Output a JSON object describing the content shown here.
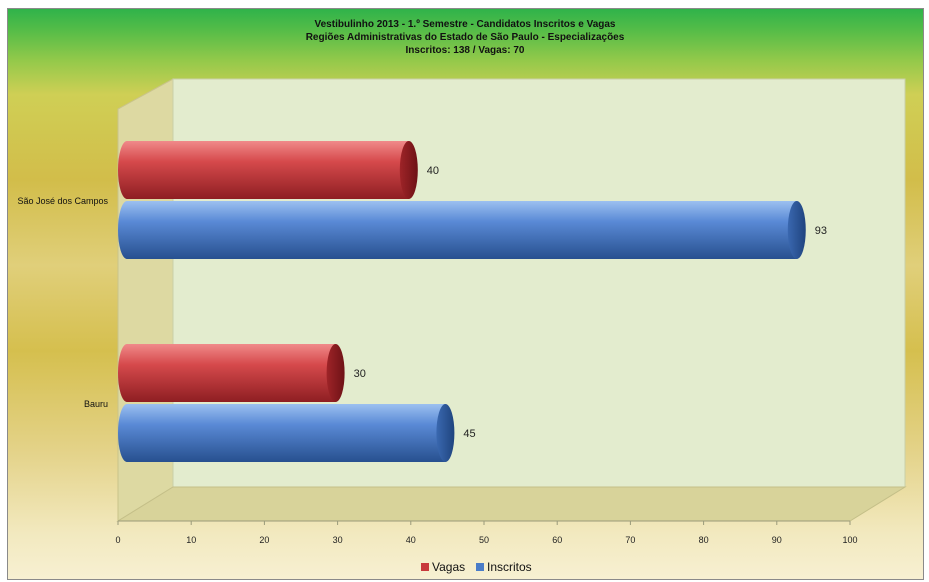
{
  "chart_data": {
    "type": "bar",
    "orientation": "horizontal",
    "title_lines": [
      "Vestibulinho 2013 - 1.º Semestre - Candidatos Inscritos e Vagas",
      "Regiões Administrativas do Estado de São Paulo - Especializações",
      "Inscritos:  138 / Vagas: 70"
    ],
    "categories": [
      "São José dos Campos",
      "Bauru"
    ],
    "series": [
      {
        "name": "Vagas",
        "values": [
          40,
          30
        ],
        "color": "#c8393c"
      },
      {
        "name": "Inscritos",
        "values": [
          93,
          45
        ],
        "color": "#4a7cc8"
      }
    ],
    "xlim": [
      0,
      100
    ],
    "x_ticks": [
      0,
      10,
      20,
      30,
      40,
      50,
      60,
      70,
      80,
      90,
      100
    ],
    "grid": false,
    "legend_position": "bottom",
    "colors": {
      "plot_wall": "#e6efcf",
      "title_band": "#2fb34a"
    }
  }
}
